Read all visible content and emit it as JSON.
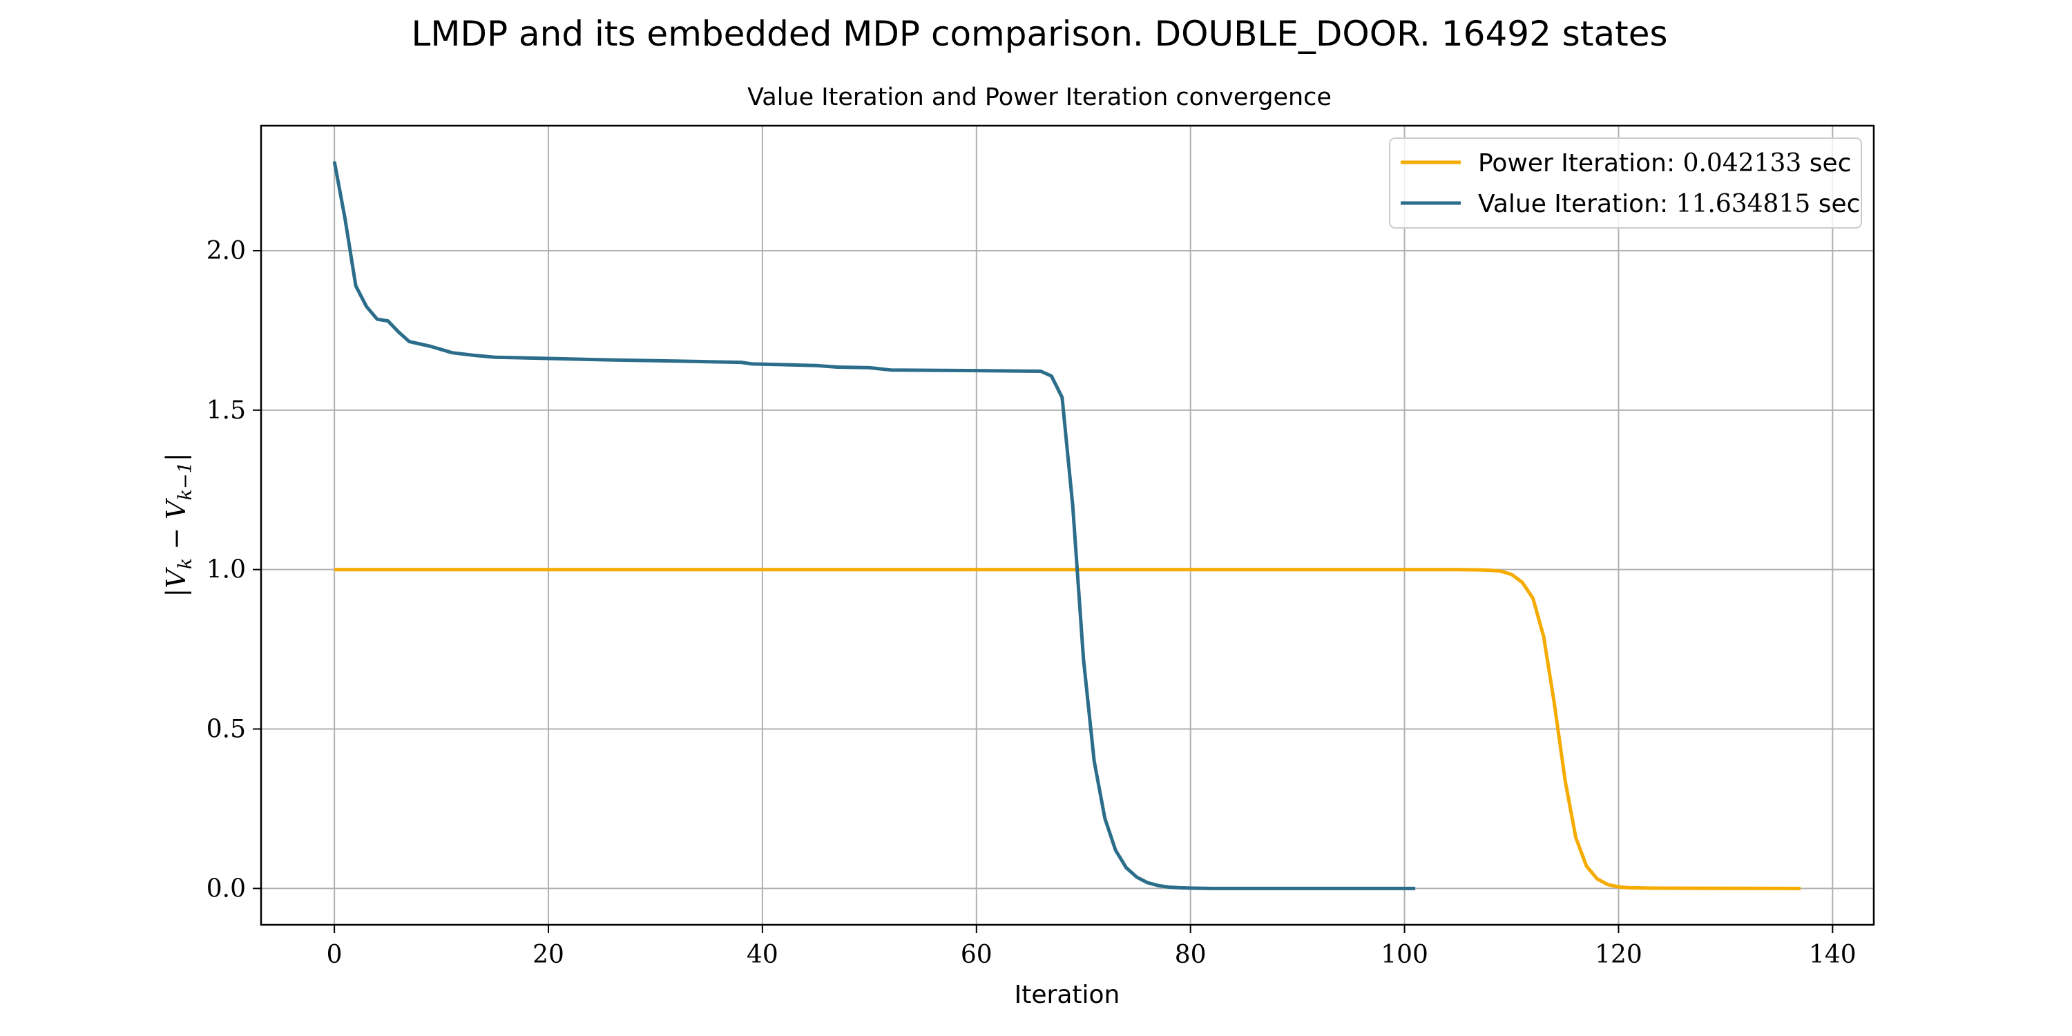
{
  "chart_data": {
    "type": "line",
    "suptitle": "LMDP and its embedded MDP comparison. DOUBLE_DOOR. 16492 states",
    "title": "Value Iteration and Power Iteration convergence",
    "xlabel": "Iteration",
    "ylabel": "|V_k − V_{k−1}|",
    "xlim": [
      -6.85,
      143.85
    ],
    "ylim": [
      -0.114,
      2.392
    ],
    "xticks": [
      0,
      20,
      40,
      60,
      80,
      100,
      120,
      140
    ],
    "yticks": [
      0.0,
      0.5,
      1.0,
      1.5,
      2.0
    ],
    "xtick_labels": [
      "0",
      "20",
      "40",
      "60",
      "80",
      "100",
      "120",
      "140"
    ],
    "ytick_labels": [
      "0.0",
      "0.5",
      "1.0",
      "1.5",
      "2.0"
    ],
    "grid": true,
    "legend_position": "top-right",
    "legend": [
      {
        "prefix": "Power Iteration: ",
        "number": "0.042133",
        "suffix": " sec",
        "color": "#f5ab00"
      },
      {
        "prefix": "Value Iteration: ",
        "number": "11.634815",
        "suffix": " sec",
        "color": "#2b6d8a"
      }
    ],
    "series": [
      {
        "name": "Power Iteration",
        "color": "#f5ab00",
        "points": [
          [
            0,
            1.0
          ],
          [
            105,
            1.0
          ],
          [
            107,
            0.999
          ],
          [
            108,
            0.998
          ],
          [
            109,
            0.995
          ],
          [
            110,
            0.985
          ],
          [
            111,
            0.96
          ],
          [
            112,
            0.91
          ],
          [
            113,
            0.79
          ],
          [
            114,
            0.58
          ],
          [
            115,
            0.34
          ],
          [
            116,
            0.16
          ],
          [
            117,
            0.07
          ],
          [
            118,
            0.03
          ],
          [
            119,
            0.012
          ],
          [
            120,
            0.005
          ],
          [
            121,
            0.002
          ],
          [
            123,
            0.001
          ],
          [
            137,
            0.0
          ]
        ]
      },
      {
        "name": "Value Iteration",
        "color": "#2b6d8a",
        "points": [
          [
            0,
            2.28
          ],
          [
            1,
            2.1
          ],
          [
            2,
            1.89
          ],
          [
            3,
            1.825
          ],
          [
            4,
            1.785
          ],
          [
            5,
            1.78
          ],
          [
            6,
            1.745
          ],
          [
            7,
            1.715
          ],
          [
            9,
            1.7
          ],
          [
            11,
            1.68
          ],
          [
            13,
            1.672
          ],
          [
            15,
            1.666
          ],
          [
            20,
            1.662
          ],
          [
            25,
            1.658
          ],
          [
            30,
            1.655
          ],
          [
            35,
            1.652
          ],
          [
            38,
            1.65
          ],
          [
            39,
            1.645
          ],
          [
            45,
            1.64
          ],
          [
            47,
            1.635
          ],
          [
            50,
            1.633
          ],
          [
            52,
            1.626
          ],
          [
            60,
            1.624
          ],
          [
            66,
            1.622
          ],
          [
            67,
            1.607
          ],
          [
            68,
            1.54
          ],
          [
            69,
            1.2
          ],
          [
            70,
            0.72
          ],
          [
            71,
            0.4
          ],
          [
            72,
            0.22
          ],
          [
            73,
            0.12
          ],
          [
            74,
            0.065
          ],
          [
            75,
            0.035
          ],
          [
            76,
            0.018
          ],
          [
            77,
            0.009
          ],
          [
            78,
            0.004
          ],
          [
            79,
            0.002
          ],
          [
            80,
            0.001
          ],
          [
            82,
            0.0
          ],
          [
            101,
            0.0
          ]
        ]
      }
    ]
  }
}
